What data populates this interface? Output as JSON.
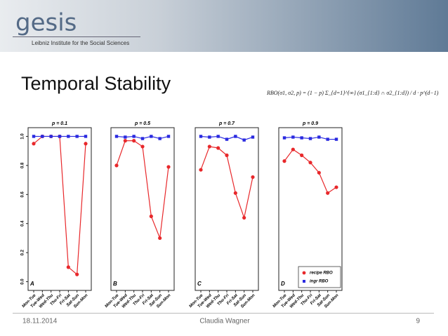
{
  "slide": {
    "logo": "gesis",
    "institute": "Leibniz Institute for the Social Sciences",
    "title": "Temporal Stability",
    "formula": "RBO(σ1, σ2, p) = (1 − p) Σ_{d=1}^{∞} (σ1_{1:d} ∩ σ2_{1:d}) / d · p^(d−1)",
    "date": "18.11.2014",
    "author": "Claudia Wagner",
    "page": "9"
  },
  "chart_data": [
    {
      "type": "line",
      "title": "p = 0.1",
      "annotation": "A",
      "categories": [
        "Mon-Tue",
        "Tue-Wed",
        "Wed-Thu",
        "Thu-Fri",
        "Fri-Sat",
        "Sat-Sun",
        "Sun-Mon"
      ],
      "series": [
        {
          "name": "recipe RBO",
          "color": "#e8282b",
          "values": [
            0.95,
            1.0,
            1.0,
            1.0,
            0.1,
            0.05,
            0.95
          ]
        },
        {
          "name": "ingr RBO",
          "color": "#2a2ae0",
          "values": [
            1.0,
            1.0,
            1.0,
            1.0,
            1.0,
            1.0,
            1.0
          ]
        }
      ],
      "ylim": [
        -0.06,
        1.06
      ],
      "yticks": [
        {
          "value": 0,
          "label": "0.0"
        },
        0.2,
        0.4,
        0.6,
        0.8,
        {
          "value": 1,
          "label": "1.0"
        }
      ]
    },
    {
      "type": "line",
      "title": "p = 0.5",
      "annotation": "B",
      "categories": [
        "Mon-Tue",
        "Tue-Wed",
        "Wed-Thu",
        "Thu-Fri",
        "Fri-Sat",
        "Sat-Sun",
        "Sun-Mon"
      ],
      "series": [
        {
          "name": "recipe RBO",
          "color": "#e8282b",
          "values": [
            0.8,
            0.97,
            0.97,
            0.93,
            0.45,
            0.3,
            0.79
          ]
        },
        {
          "name": "ingr RBO",
          "color": "#2a2ae0",
          "values": [
            1.0,
            0.995,
            1.0,
            0.985,
            1.0,
            0.985,
            1.0
          ]
        }
      ],
      "ylim": [
        -0.06,
        1.06
      ]
    },
    {
      "type": "line",
      "title": "p = 0.7",
      "annotation": "C",
      "categories": [
        "Mon-Tue",
        "Tue-Wed",
        "Wed-Thu",
        "Thu-Fri",
        "Fri-Sat",
        "Sat-Sun",
        "Sun-Mon"
      ],
      "series": [
        {
          "name": "recipe RBO",
          "color": "#e8282b",
          "values": [
            0.77,
            0.93,
            0.92,
            0.87,
            0.61,
            0.44,
            0.72
          ]
        },
        {
          "name": "ingr RBO",
          "color": "#2a2ae0",
          "values": [
            1.0,
            0.995,
            1.0,
            0.98,
            1.0,
            0.975,
            0.995
          ]
        }
      ],
      "ylim": [
        -0.06,
        1.06
      ]
    },
    {
      "type": "line",
      "title": "p = 0.9",
      "annotation": "D",
      "legend": "bottom right",
      "categories": [
        "Mon-Tue",
        "Tue-Wed",
        "Wed-Thu",
        "Thu-Fri",
        "Fri-Sat",
        "Sat-Sun",
        "Sun-Mon"
      ],
      "series": [
        {
          "name": "recipe RBO",
          "color": "#e8282b",
          "values": [
            0.83,
            0.91,
            0.87,
            0.82,
            0.75,
            0.61,
            0.65
          ]
        },
        {
          "name": "ingr RBO",
          "color": "#2a2ae0",
          "values": [
            0.99,
            0.995,
            0.99,
            0.985,
            0.995,
            0.98,
            0.98
          ]
        }
      ],
      "ylim": [
        -0.06,
        1.06
      ]
    }
  ]
}
